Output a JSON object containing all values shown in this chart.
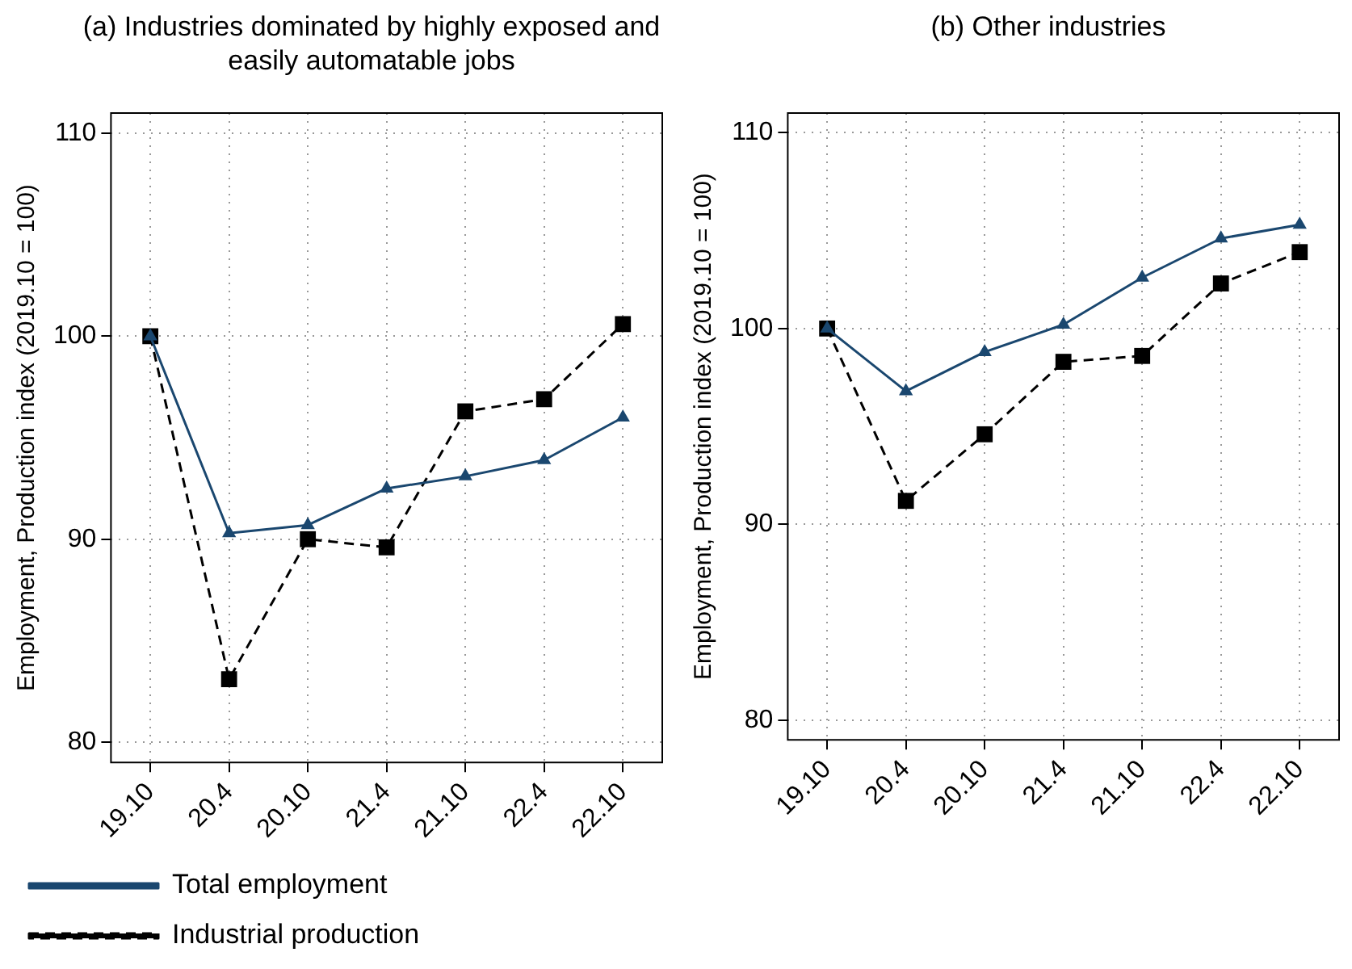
{
  "chart_data": [
    {
      "type": "line",
      "title": "(a) Industries dominated by highly exposed and easily automatable jobs",
      "ylabel": "Employment, Production index (2019.10 = 100)",
      "categories": [
        "19.10",
        "20.4",
        "20.10",
        "21.4",
        "21.10",
        "22.4",
        "22.10"
      ],
      "ylim": [
        79,
        111
      ],
      "yticks": [
        80,
        90,
        100,
        110
      ],
      "grid": true,
      "legend": "bottom left",
      "series": [
        {
          "name": "Total employment",
          "color": "#1a476f",
          "marker": "triangle",
          "line_style": "solid",
          "values": [
            100,
            90.3,
            90.7,
            92.5,
            93.1,
            93.9,
            96.0
          ]
        },
        {
          "name": "Industrial production",
          "color": "#000000",
          "marker": "square",
          "line_style": "dashed",
          "values": [
            100,
            83.1,
            90.0,
            89.6,
            96.3,
            96.9,
            100.6
          ]
        }
      ]
    },
    {
      "type": "line",
      "title": "(b) Other industries",
      "ylabel": "Employment, Production index (2019.10 = 100)",
      "categories": [
        "19.10",
        "20.4",
        "20.10",
        "21.4",
        "21.10",
        "22.4",
        "22.10"
      ],
      "ylim": [
        79,
        111
      ],
      "yticks": [
        80,
        90,
        100,
        110
      ],
      "grid": true,
      "series": [
        {
          "color": "#1a476f",
          "marker": "triangle",
          "line_style": "solid",
          "values": [
            100,
            96.8,
            98.8,
            100.2,
            102.6,
            104.6,
            105.3
          ]
        },
        {
          "color": "#000000",
          "marker": "square",
          "line_style": "dashed",
          "values": [
            100,
            91.2,
            94.6,
            98.3,
            98.6,
            102.3,
            103.9
          ]
        }
      ]
    }
  ]
}
